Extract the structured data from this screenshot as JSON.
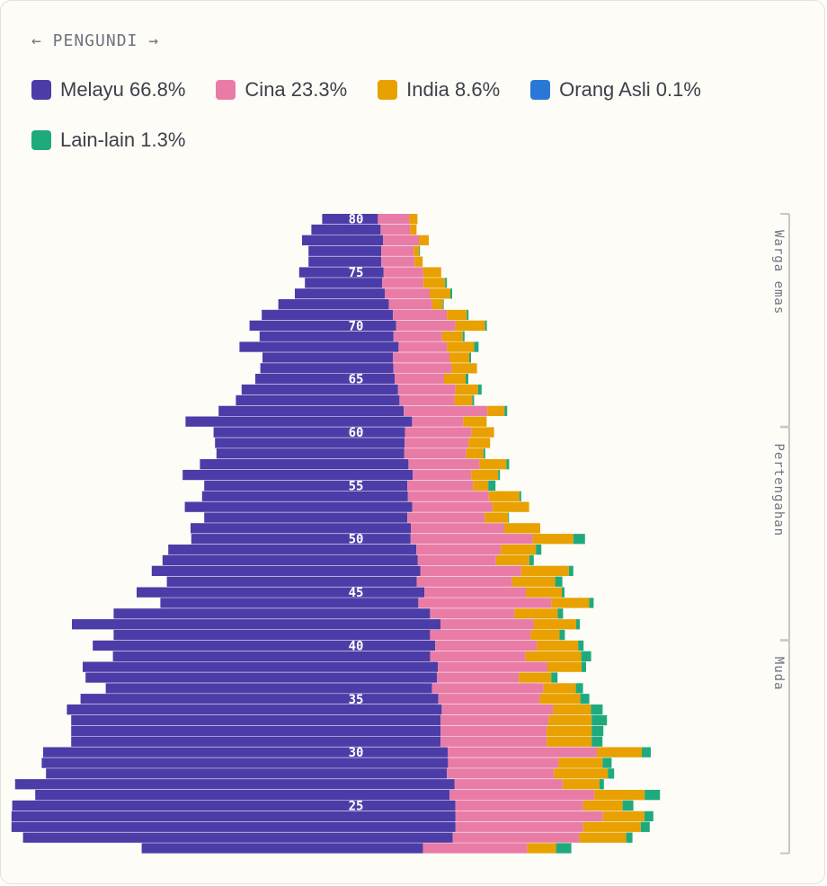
{
  "nav": {
    "label": "← PENGUNDI →"
  },
  "legend": [
    {
      "label": "Melayu 66.8%",
      "color": "#4b3ca8"
    },
    {
      "label": "Cina 23.3%",
      "color": "#e97ca6"
    },
    {
      "label": "India 8.6%",
      "color": "#e8a100"
    },
    {
      "label": "Orang Asli 0.1%",
      "color": "#2a78d6"
    },
    {
      "label": "Lain-lain 1.3%",
      "color": "#1faa7e"
    }
  ],
  "chart_data": {
    "type": "bar",
    "orientation": "horizontal-stacked",
    "title": "",
    "categories": [
      80,
      79,
      78,
      77,
      76,
      75,
      74,
      73,
      72,
      71,
      70,
      69,
      68,
      67,
      66,
      65,
      64,
      63,
      62,
      61,
      60,
      59,
      58,
      57,
      56,
      55,
      54,
      53,
      52,
      51,
      50,
      49,
      48,
      47,
      46,
      45,
      44,
      43,
      42,
      41,
      40,
      39,
      38,
      37,
      36,
      35,
      34,
      33,
      32,
      31,
      30,
      29,
      28,
      27,
      26,
      25,
      24,
      23,
      22,
      21
    ],
    "age_tick_labels": [
      "80",
      "75",
      "70",
      "65",
      "60",
      "55",
      "50",
      "45",
      "40",
      "35",
      "30",
      "25"
    ],
    "age_groups": [
      {
        "label": "Warga emas",
        "from": 80,
        "to": 61
      },
      {
        "label": "Pertengahan",
        "from": 60,
        "to": 41
      },
      {
        "label": "Muda",
        "from": 40,
        "to": 21
      }
    ],
    "series": [
      {
        "name": "Melayu",
        "color": "#4b3ca8",
        "values": [
          62,
          77,
          90,
          81,
          81,
          94,
          86,
          100,
          123,
          146,
          163,
          149,
          177,
          145,
          148,
          155,
          174,
          182,
          206,
          252,
          213,
          211,
          209,
          232,
          256,
          226,
          229,
          253,
          226,
          245,
          244,
          276,
          284,
          299,
          278,
          320,
          287,
          352,
          410,
          352,
          381,
          353,
          395,
          391,
          363,
          398,
          417,
          411,
          411,
          411,
          450,
          452,
          446,
          489,
          461,
          493,
          494,
          494,
          478,
          313
        ]
      },
      {
        "name": "Cina",
        "color": "#e97ca6",
        "values": [
          35,
          33,
          40,
          36,
          37,
          44,
          46,
          50,
          48,
          60,
          66,
          54,
          54,
          63,
          65,
          55,
          64,
          61,
          93,
          57,
          74,
          71,
          69,
          79,
          65,
          73,
          90,
          89,
          86,
          104,
          136,
          94,
          87,
          112,
          106,
          113,
          148,
          94,
          104,
          112,
          113,
          106,
          122,
          91,
          124,
          113,
          124,
          120,
          118,
          118,
          166,
          123,
          119,
          120,
          161,
          142,
          164,
          142,
          141,
          116
        ]
      },
      {
        "name": "India",
        "color": "#e8a100",
        "values": [
          9,
          7,
          11,
          6,
          9,
          20,
          24,
          23,
          12,
          22,
          33,
          23,
          30,
          22,
          28,
          24,
          25,
          20,
          19,
          26,
          25,
          24,
          19,
          30,
          30,
          17,
          34,
          41,
          26,
          40,
          45,
          39,
          37,
          53,
          48,
          40,
          42,
          48,
          47,
          32,
          46,
          62,
          38,
          36,
          36,
          45,
          42,
          48,
          50,
          50,
          50,
          49,
          60,
          41,
          56,
          44,
          46,
          64,
          52,
          32
        ]
      },
      {
        "name": "Orang Asli",
        "color": "#2a78d6",
        "values": [
          0,
          0,
          0,
          0,
          0,
          0,
          0,
          0,
          0,
          0,
          0,
          0,
          0,
          0,
          0,
          0,
          0,
          0,
          0,
          0,
          0,
          0,
          0,
          0,
          0,
          0,
          0,
          0,
          0,
          0,
          0,
          0,
          0,
          0,
          0,
          0,
          0,
          0,
          0,
          0,
          0,
          0,
          0,
          0,
          0,
          0,
          0,
          0,
          0,
          0,
          0,
          0,
          0,
          0,
          0,
          0,
          0,
          0,
          0,
          0
        ]
      },
      {
        "name": "Lain-lain",
        "color": "#1faa7e",
        "values": [
          0,
          0,
          0,
          1,
          0,
          0,
          2,
          2,
          1,
          2,
          2,
          2,
          5,
          2,
          0,
          3,
          4,
          2,
          3,
          0,
          0,
          0,
          2,
          3,
          2,
          8,
          2,
          0,
          1,
          0,
          13,
          6,
          5,
          5,
          8,
          3,
          5,
          6,
          4,
          6,
          6,
          11,
          5,
          7,
          8,
          10,
          13,
          17,
          13,
          12,
          10,
          10,
          7,
          5,
          17,
          12,
          10,
          10,
          7,
          17
        ]
      }
    ]
  }
}
